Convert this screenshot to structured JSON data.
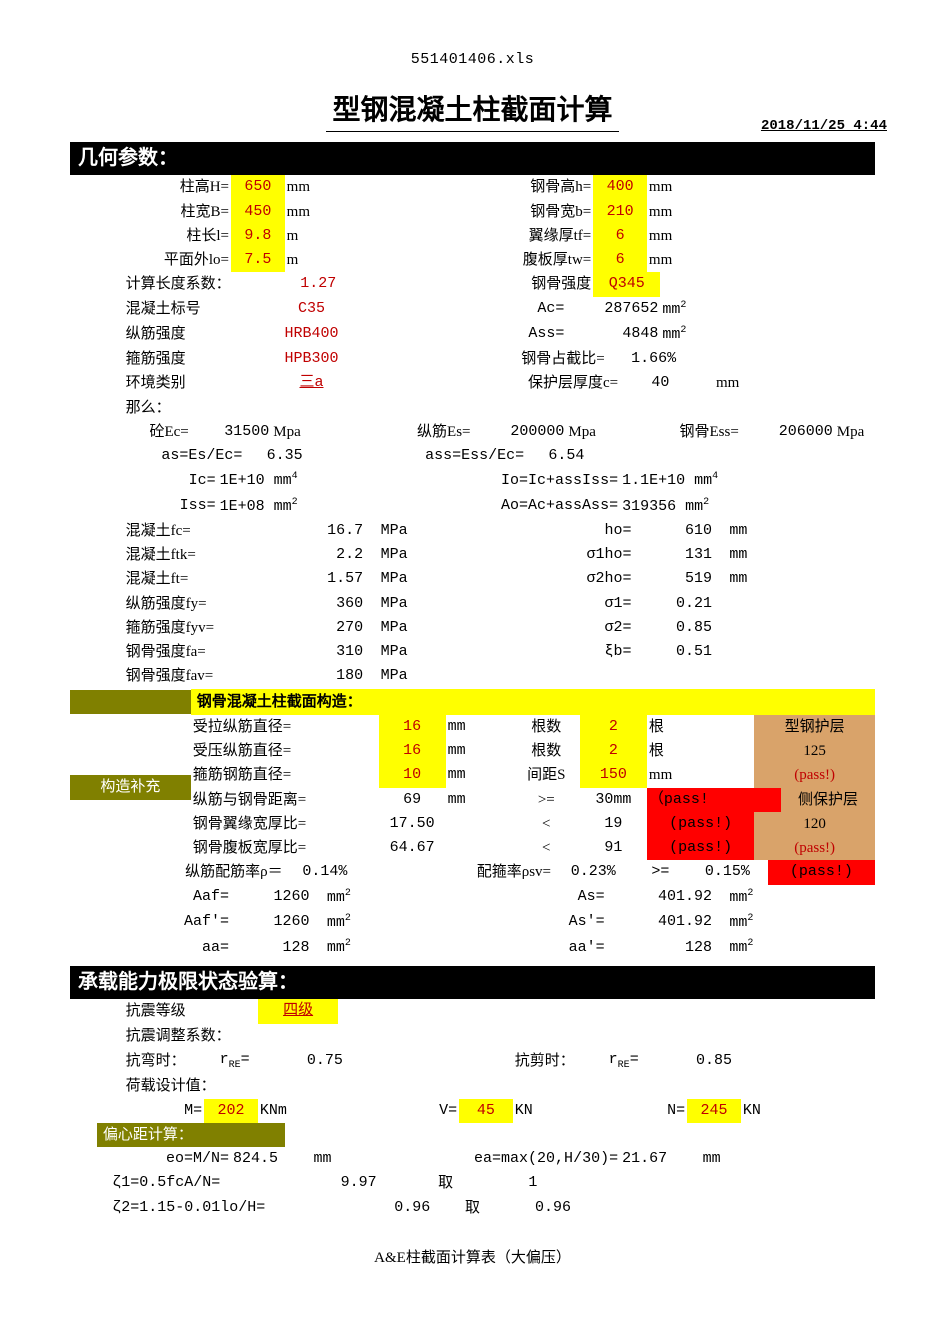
{
  "file_header": "551401406.xls",
  "main_title": "型钢混凝土柱截面计算",
  "timestamp": "2018/11/25 4:44",
  "sec1_title": "几何参数：",
  "geom": {
    "H_lbl": "柱高H=",
    "H_val": "650",
    "H_unit": "mm",
    "B_lbl": "柱宽B=",
    "B_val": "450",
    "B_unit": "mm",
    "l_lbl": "柱长l=",
    "l_val": "9.8",
    "l_unit": "m",
    "lo_lbl": "平面外lo=",
    "lo_val": "7.5",
    "lo_unit": "m",
    "lenfac_lbl": "计算长度系数：",
    "lenfac_val": "1.27",
    "conc_lbl": "混凝土标号",
    "conc_val": "C35",
    "rebar_lbl": "纵筋强度",
    "rebar_val": "HRB400",
    "stirrup_lbl": "箍筋强度",
    "stirrup_val": "HPB300",
    "env_lbl": "环境类别",
    "env_val": "三a",
    "then_lbl": "那么：",
    "h_lbl": "钢骨高h=",
    "h_val": "400",
    "h_unit": "mm",
    "b_lbl": "钢骨宽b=",
    "b_val": "210",
    "b_unit": "mm",
    "tf_lbl": "翼缘厚tf=",
    "tf_val": "6",
    "tf_unit": "mm",
    "tw_lbl": "腹板厚tw=",
    "tw_val": "6",
    "tw_unit": "mm",
    "steelgrade_lbl": "钢骨强度",
    "steelgrade_val": "Q345",
    "Ac_lbl": "Ac=",
    "Ac_val": "287652",
    "Ac_unit": "mm",
    "Ac_sup": "2",
    "Ass_lbl": "Ass=",
    "Ass_val": "4848",
    "Ass_unit": "mm",
    "Ass_sup": "2",
    "ratio_lbl": "钢骨占截比=",
    "ratio_val": "1.66%",
    "cover_lbl": "保护层厚度c=",
    "cover_val": "40",
    "cover_unit": "mm"
  },
  "derived": {
    "Ec_lbl": "砼Ec=",
    "Ec_val": "31500",
    "Ec_unit": "Mpa",
    "Es_lbl": "纵筋Es=",
    "Es_val": "200000",
    "Es_unit": "Mpa",
    "Ess_lbl": "钢骨Ess=",
    "Ess_val": "206000",
    "Ess_unit": "Mpa",
    "as_lbl": "as=Es/Ec=",
    "as_val": "6.35",
    "ass_lbl": "ass=Ess/Ec=",
    "ass_val": "6.54",
    "Ic_lbl": "Ic=",
    "Ic_val": "1E+10",
    "Ic_unit": "mm",
    "Ic_sup": "4",
    "Io_lbl": "Io=Ic+assIss=",
    "Io_val": "1.1E+10",
    "Io_unit": "mm",
    "Io_sup": "4",
    "Iss_lbl": "Iss=",
    "Iss_val": "1E+08",
    "Iss_unit": "mm",
    "Iss_sup": "2",
    "Ao_lbl": "Ao=Ac+assAss=",
    "Ao_val": "319356",
    "Ao_unit": "mm",
    "Ao_sup": "2"
  },
  "mats": [
    {
      "l": "混凝土fc=",
      "v": "16.7",
      "u": "MPa",
      "r": "ho=",
      "rv": "610",
      "ru": "mm"
    },
    {
      "l": "混凝土ftk=",
      "v": "2.2",
      "u": "MPa",
      "r": "σ1ho=",
      "rv": "131",
      "ru": "mm"
    },
    {
      "l": "混凝土ft=",
      "v": "1.57",
      "u": "MPa",
      "r": "σ2ho=",
      "rv": "519",
      "ru": "mm"
    },
    {
      "l": "纵筋强度fy=",
      "v": "360",
      "u": "MPa",
      "r": "σ1=",
      "rv": "0.21",
      "ru": ""
    },
    {
      "l": "箍筋强度fyv=",
      "v": "270",
      "u": "MPa",
      "r": "σ2=",
      "rv": "0.85",
      "ru": ""
    },
    {
      "l": "钢骨强度fa=",
      "v": "310",
      "u": "MPa",
      "r": "ξb=",
      "rv": "0.51",
      "ru": ""
    },
    {
      "l": "钢骨强度fav=",
      "v": "180",
      "u": "MPa",
      "r": "",
      "rv": "",
      "ru": ""
    }
  ],
  "construct_hdr": "钢骨混凝土柱截面构造：",
  "sidebar_lbl": "构造补充",
  "con_rows": [
    {
      "l": "受拉纵筋直径=",
      "v": "16",
      "u": "mm",
      "m": "根数",
      "mv": "2",
      "mu": "根",
      "rlab": "型钢护层",
      "rcls": "tan"
    },
    {
      "l": "受压纵筋直径=",
      "v": "16",
      "u": "mm",
      "m": "根数",
      "mv": "2",
      "mu": "根",
      "rlab": "125",
      "rcls": "tan"
    },
    {
      "l": "箍筋钢筋直径=",
      "v": "10",
      "u": "mm",
      "m": "间距S",
      "mv": "150",
      "mu": "mm",
      "rlab": "(pass!)",
      "rcls": "tan-red"
    },
    {
      "l": "纵筋与钢骨距离=",
      "v": "69",
      "u": "mm",
      "m": ">=",
      "mv": "30mm",
      "mu": "",
      "rlab": "（pass!侧保护层",
      "rcls": "red-tan"
    },
    {
      "l": "钢骨翼缘宽厚比=",
      "v": "17.50",
      "u": "",
      "m": "<",
      "mv": "19",
      "mu": "",
      "rlab": "(pass!)",
      "rcls": "red",
      "r2": "120",
      "r2cls": "tan"
    },
    {
      "l": "钢骨腹板宽厚比=",
      "v": "64.67",
      "u": "",
      "m": "<",
      "mv": "91",
      "mu": "",
      "rlab": "(pass!)",
      "rcls": "red",
      "r2": "(pass!)",
      "r2cls": "tan-red"
    }
  ],
  "rho_lbl": "纵筋配筋率ρ＝",
  "rho_val": "0.14%",
  "rhosv_lbl": "配箍率ρsv=",
  "rhosv_val": "0.23%",
  "rhosv_cmp": ">=",
  "rhosv_lim": "0.15%",
  "rhosv_pass": "(pass!)",
  "areas": [
    {
      "l": "Aaf=",
      "v": "1260",
      "u": "mm",
      "sup": "2",
      "r": "As=",
      "rv": "401.92",
      "ru": "mm",
      "rsup": "2"
    },
    {
      "l": "Aaf'=",
      "v": "1260",
      "u": "mm",
      "sup": "2",
      "r": "As'=",
      "rv": "401.92",
      "ru": "mm",
      "rsup": "2"
    },
    {
      "l": "aa=",
      "v": "128",
      "u": "mm",
      "sup": "2",
      "r": "aa'=",
      "rv": "128",
      "ru": "mm",
      "rsup": "2"
    }
  ],
  "sec2_title": "承载能力极限状态验算：",
  "seismic": {
    "grade_lbl": "抗震等级",
    "grade_val": "四级",
    "coef_lbl": "抗震调整系数：",
    "bend_lbl": "抗弯时：",
    "bend_r": "r",
    "bend_sub": "RE",
    "bend_eq": "=",
    "bend_val": "0.75",
    "shear_lbl": "抗剪时：",
    "shear_val": "0.85",
    "load_lbl": "荷载设计值：",
    "M_lbl": "M=",
    "M_val": "202",
    "M_unit": "KNm",
    "V_lbl": "V=",
    "V_val": "45",
    "V_unit": "KN",
    "N_lbl": "N=",
    "N_val": "245",
    "N_unit": "KN"
  },
  "ecc": {
    "hdr": "偏心距计算：",
    "eo_lbl": "eo=M/N=",
    "eo_val": "824.5",
    "eo_unit": "mm",
    "ea_lbl": "ea=max(20,H/30)=",
    "ea_val": "21.67",
    "ea_unit": "mm",
    "z1_lbl": "ζ1=0.5fcA/N=",
    "z1_val": "9.97",
    "z1_take": "取",
    "z1_use": "1",
    "z2_lbl": "ζ2=1.15-0.01lo/H=",
    "z2_val": "0.96",
    "z2_take": "取",
    "z2_use": "0.96"
  },
  "footer": "A&E柱截面计算表（大偏压）"
}
